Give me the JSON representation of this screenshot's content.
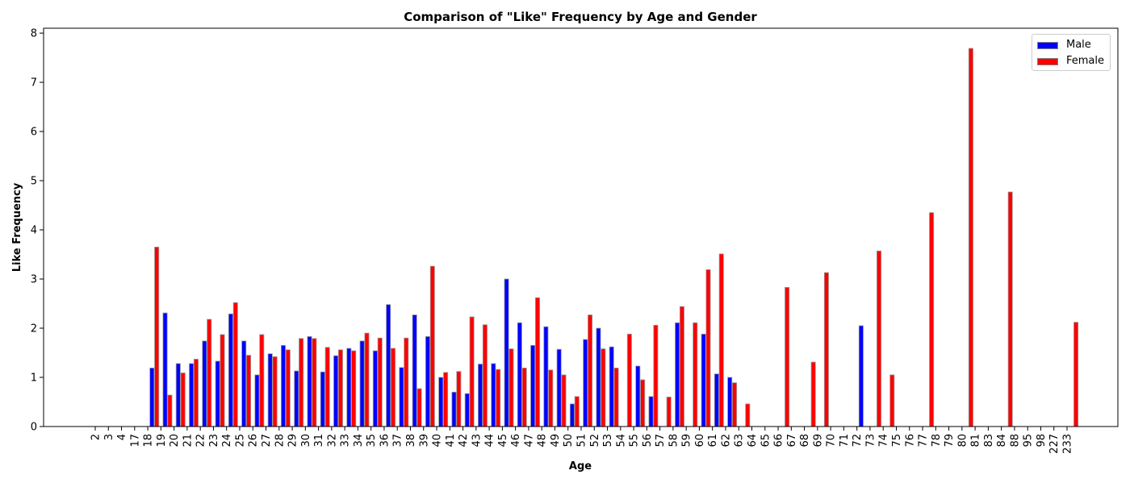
{
  "chart_data": {
    "type": "bar",
    "title": "Comparison of \"Like\" Frequency by Age and Gender",
    "xlabel": "Age",
    "ylabel": "Like Frequency",
    "ylim": [
      0,
      8.1
    ],
    "yticks": [
      0,
      1,
      2,
      3,
      4,
      5,
      6,
      7,
      8
    ],
    "grid": false,
    "legend_position": "top-right",
    "categories": [
      "2",
      "3",
      "4",
      "17",
      "18",
      "19",
      "20",
      "21",
      "22",
      "23",
      "24",
      "25",
      "26",
      "27",
      "28",
      "29",
      "30",
      "31",
      "32",
      "33",
      "34",
      "35",
      "36",
      "37",
      "38",
      "39",
      "40",
      "41",
      "42",
      "43",
      "44",
      "45",
      "46",
      "47",
      "48",
      "49",
      "50",
      "51",
      "52",
      "53",
      "54",
      "55",
      "56",
      "57",
      "58",
      "59",
      "60",
      "61",
      "62",
      "63",
      "64",
      "65",
      "66",
      "67",
      "68",
      "69",
      "70",
      "71",
      "72",
      "73",
      "74",
      "75",
      "76",
      "77",
      "78",
      "79",
      "80",
      "81",
      "83",
      "84",
      "88",
      "95",
      "98",
      "227",
      "233"
    ],
    "series": [
      {
        "name": "Male",
        "color": "#0000ff",
        "values": [
          0,
          0,
          0,
          0,
          1.19,
          2.31,
          1.28,
          1.28,
          1.74,
          1.33,
          2.29,
          1.74,
          1.05,
          1.48,
          1.65,
          1.13,
          1.83,
          1.11,
          1.44,
          1.59,
          1.74,
          1.54,
          2.48,
          1.2,
          2.27,
          1.83,
          1.0,
          0.7,
          0.67,
          1.27,
          1.28,
          3.0,
          2.11,
          1.65,
          2.03,
          1.57,
          0.46,
          1.77,
          2.0,
          1.62,
          0,
          1.23,
          0.61,
          0,
          2.11,
          0,
          1.88,
          1.07,
          1.0,
          0,
          0,
          0,
          0,
          0,
          0,
          0,
          0,
          0,
          2.05,
          0,
          0,
          0,
          0,
          0,
          0,
          0,
          0,
          0,
          0,
          0,
          0,
          0,
          0,
          0,
          0
        ]
      },
      {
        "name": "Female",
        "color": "#ff0000",
        "values": [
          0,
          0,
          0,
          0,
          3.65,
          0.64,
          1.09,
          1.37,
          2.18,
          1.87,
          2.52,
          1.45,
          1.87,
          1.42,
          1.56,
          1.79,
          1.79,
          1.61,
          1.56,
          1.54,
          1.9,
          1.8,
          1.59,
          1.8,
          0.77,
          3.26,
          1.1,
          1.12,
          2.23,
          2.07,
          1.16,
          1.58,
          1.19,
          2.62,
          1.15,
          1.05,
          0.61,
          2.27,
          1.58,
          1.19,
          1.88,
          0.95,
          2.06,
          0.6,
          2.44,
          2.11,
          3.19,
          3.51,
          0.89,
          0.46,
          0,
          0,
          2.83,
          0,
          1.31,
          3.13,
          0,
          0,
          0,
          3.57,
          1.05,
          0,
          0,
          4.35,
          0,
          0,
          7.69,
          0,
          0,
          4.77,
          0,
          0,
          0,
          0,
          2.12
        ]
      }
    ]
  }
}
